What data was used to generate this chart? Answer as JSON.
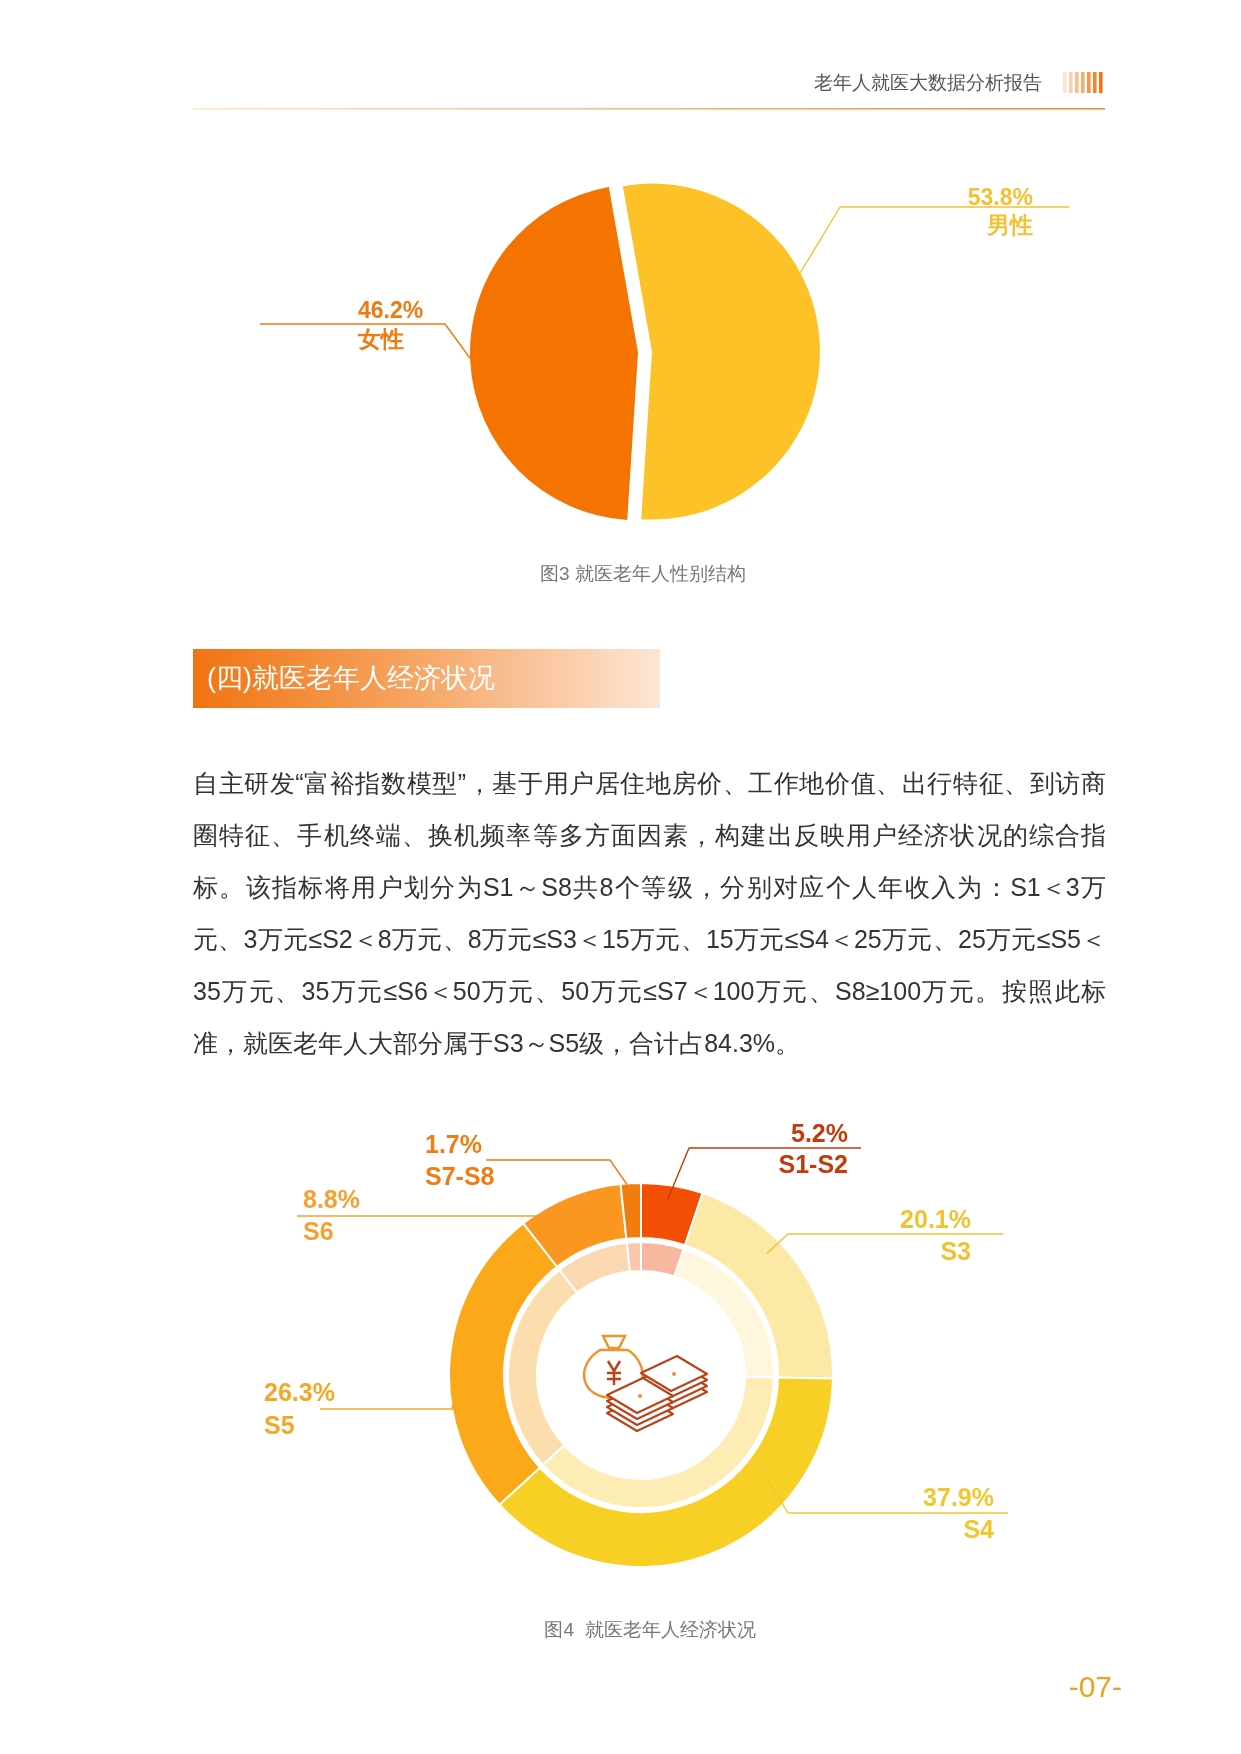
{
  "chart_data": [
    {
      "type": "pie",
      "title": "图3 就医老年人性别结构",
      "categories": [
        "男性",
        "女性"
      ],
      "values": [
        53.8,
        46.2
      ],
      "colors": [
        "#FDC227",
        "#F57300"
      ],
      "value_labels": [
        "53.8%",
        "46.2%"
      ],
      "annotations": [
        "老年人就医大数据分析报告"
      ]
    },
    {
      "type": "other",
      "title": "(四)就医老年人经济状况",
      "annotations": [
        "自主研发“富裕指数模型”，基于用户居住地房价、工作地价值、出行特征、到访商圈特征、手机终端、换机频率等多方面因素，构建出反映用户经济状况的综合指标。该指标将用户划分为S1～S8共8个等级，分别对应个人年收入为：S1＜3万元、3万元≤S2＜8万元、8万元≤S3＜15万元、15万元≤S4＜25万元、25万元≤S5＜35万元、35万元≤S6＜50万元、50万元≤S7＜100万元、S8≥100万元。按照此标准，就医老年人大部分属于S3～S5级，合计占84.3%。"
      ]
    },
    {
      "type": "donut",
      "title": "图4  就医老年人经济状况",
      "categories": [
        "S1-S2",
        "S3",
        "S4",
        "S5",
        "S6",
        "S7-S8"
      ],
      "series": [
        {
          "values": [
            5.2,
            20.1,
            37.9,
            26.3,
            8.8,
            1.7
          ],
          "colors": [
            "#F24E04",
            "#FDE9A6",
            "#F8D025",
            "#FBA918",
            "#FB9620",
            "#F27C0E"
          ],
          "value_labels": [
            "5.2%",
            "20.1%",
            "37.9%",
            "26.3%",
            "8.8%",
            "1.7%"
          ]
        },
        {
          "values": [
            5.2,
            20.1,
            37.9,
            26.3,
            8.8,
            1.7
          ],
          "colors": [
            "#F8B8A0",
            "#FEF6DD",
            "#FDEDB4",
            "#FCDEAE",
            "#FCD8B2",
            "#F9C8AE"
          ]
        }
      ],
      "annotations": [
        "-07-"
      ]
    }
  ]
}
